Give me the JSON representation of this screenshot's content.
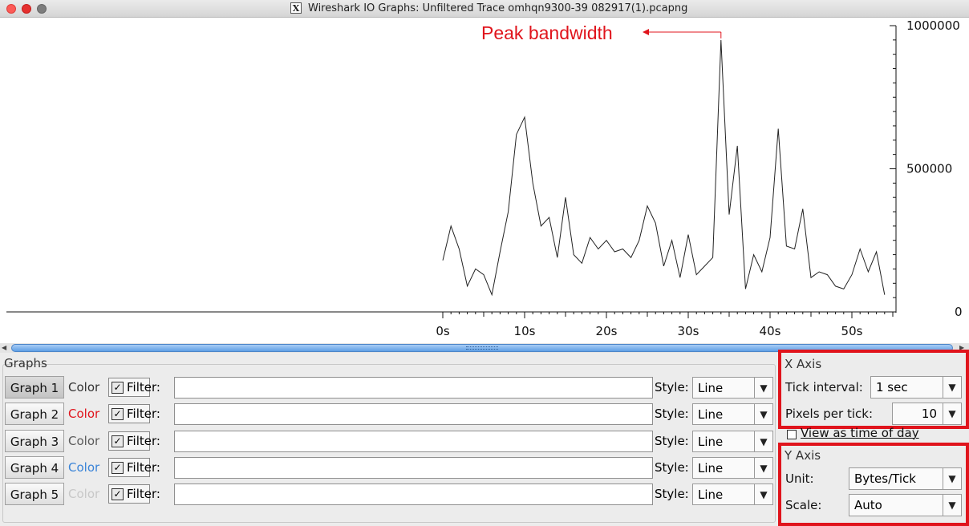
{
  "window": {
    "title": "Wireshark IO Graphs: Unfiltered Trace omhqn9300-39 082917(1).pcapng"
  },
  "chart_data": {
    "type": "line",
    "annotation": "Peak bandwidth",
    "x_tick_labels": [
      "0s",
      "10s",
      "20s",
      "30s",
      "40s",
      "50s"
    ],
    "y_tick_labels": [
      "1000000",
      "500000",
      "0"
    ],
    "xlim": [
      0,
      55
    ],
    "ylim": [
      0,
      1000000
    ],
    "series": [
      {
        "x": [
          0,
          1,
          2,
          3,
          4,
          5,
          6,
          7,
          8,
          9,
          10,
          11,
          12,
          13,
          14,
          15,
          16,
          17,
          18,
          19,
          20,
          21,
          22,
          23,
          24,
          25,
          26,
          27,
          28,
          29,
          30,
          31,
          32,
          33,
          34,
          35,
          36,
          37,
          38,
          39,
          40,
          41,
          42,
          43,
          44,
          45,
          46,
          47,
          48,
          49,
          50,
          51,
          52,
          53,
          54
        ],
        "y": [
          180000,
          300000,
          220000,
          90000,
          150000,
          130000,
          60000,
          210000,
          350000,
          620000,
          680000,
          450000,
          300000,
          330000,
          190000,
          400000,
          200000,
          170000,
          260000,
          220000,
          250000,
          210000,
          220000,
          190000,
          250000,
          370000,
          310000,
          160000,
          250000,
          120000,
          270000,
          130000,
          160000,
          190000,
          950000,
          340000,
          580000,
          80000,
          200000,
          140000,
          260000,
          640000,
          230000,
          220000,
          360000,
          120000,
          140000,
          130000,
          90000,
          80000,
          130000,
          220000,
          140000,
          210000,
          60000
        ]
      }
    ]
  },
  "graphs": {
    "section_title": "Graphs",
    "color_label": "Color",
    "filter_label": "Filter:",
    "style_label": "Style:",
    "rows": [
      {
        "label": "Graph 1",
        "color": "#333333",
        "filter": "",
        "style": "Line"
      },
      {
        "label": "Graph 2",
        "color": "#e0141c",
        "filter": "",
        "style": "Line"
      },
      {
        "label": "Graph 3",
        "color": "#5a5a5a",
        "filter": "",
        "style": "Line"
      },
      {
        "label": "Graph 4",
        "color": "#3a84d8",
        "filter": "",
        "style": "Line"
      },
      {
        "label": "Graph 5",
        "color": "#c8c8c8",
        "filter": "",
        "style": "Line"
      }
    ]
  },
  "x_axis": {
    "section_title": "X Axis",
    "tick_interval_label": "Tick interval:",
    "tick_interval_value": "1 sec",
    "pixels_per_tick_label": "Pixels per tick:",
    "pixels_per_tick_value": "10",
    "time_of_day_label": "View as time of day",
    "time_of_day_checked": false
  },
  "y_axis": {
    "section_title": "Y Axis",
    "unit_label": "Unit:",
    "unit_value": "Bytes/Tick",
    "scale_label": "Scale:",
    "scale_value": "Auto"
  },
  "colors": {
    "annotation": "#e0141c",
    "highlight_box": "#e0141c",
    "scroll_thumb": "#6aa6e8"
  }
}
